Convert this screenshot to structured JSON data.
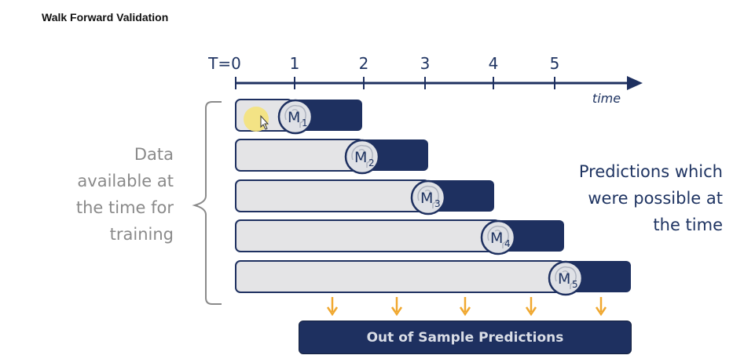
{
  "title": "Walk Forward Validation",
  "timeline": {
    "tick_labels": [
      "T=0",
      "1",
      "2",
      "3",
      "4",
      "5"
    ],
    "axis_label": "time"
  },
  "models": [
    {
      "letter": "M",
      "sub": "1"
    },
    {
      "letter": "M",
      "sub": "2"
    },
    {
      "letter": "M",
      "sub": "3"
    },
    {
      "letter": "M",
      "sub": "4"
    },
    {
      "letter": "M",
      "sub": "5"
    }
  ],
  "left_text": [
    "Data",
    "available at",
    "the time for",
    "training"
  ],
  "right_text": [
    "Predictions which",
    "were possible at",
    "the time"
  ],
  "bottom_bar": "Out of Sample Predictions",
  "colors": {
    "navy": "#1e3060",
    "train_fill": "#e4e4e6",
    "arrow": "#f0a830",
    "highlight": "#f4e27a",
    "bracket": "#8a8a8a"
  },
  "icons": [
    "brain-icon",
    "cursor-icon"
  ]
}
